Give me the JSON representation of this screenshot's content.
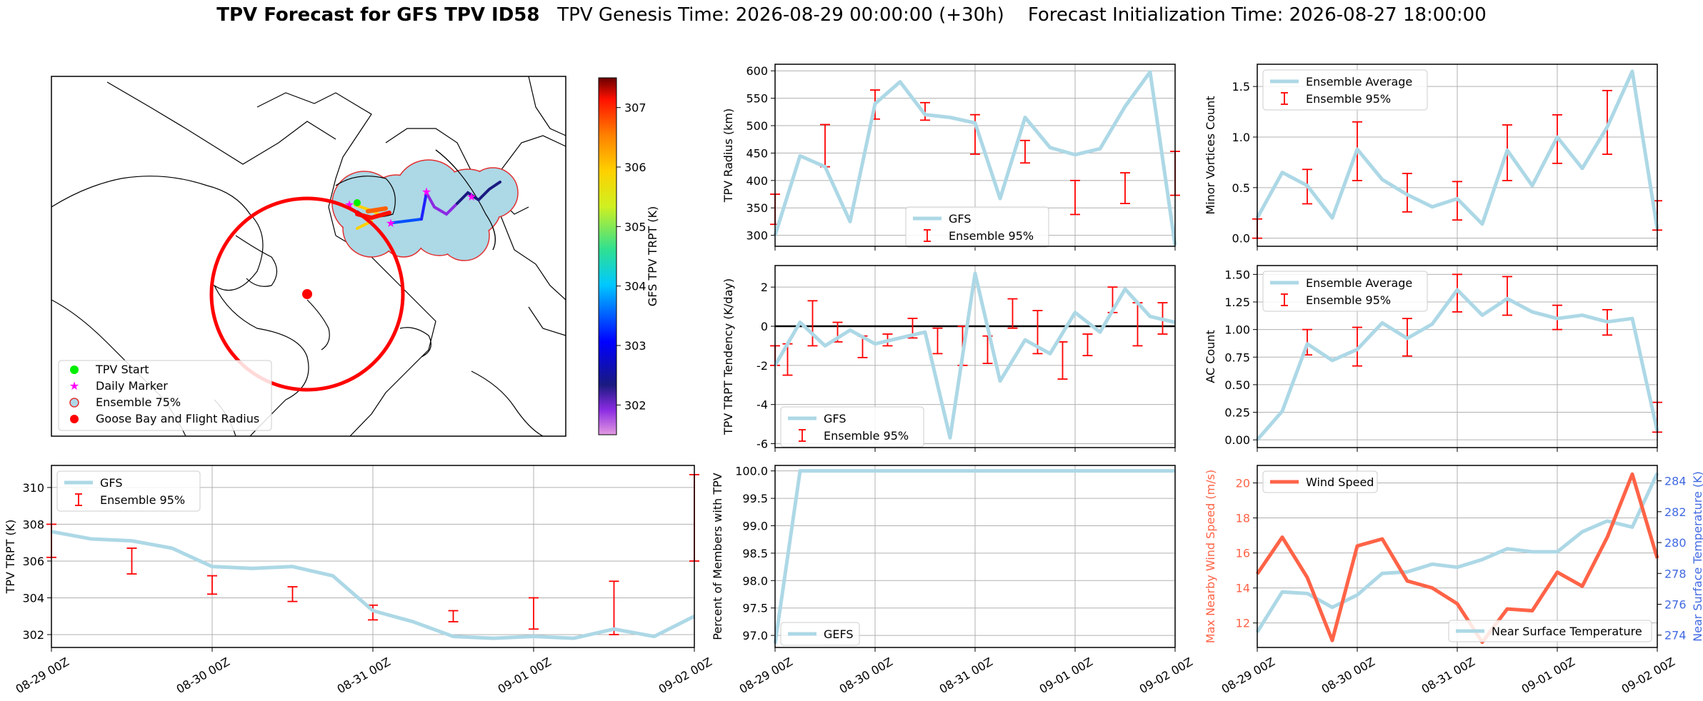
{
  "title": {
    "bold": "TPV Forecast for GFS TPV ID58",
    "genesis": "TPV Genesis Time: 2026-08-29 00:00:00 (+30h)",
    "init": "Forecast Initialization Time: 2026-08-27 18:00:00"
  },
  "colors": {
    "gfs": "#add8e6",
    "errorbar": "#ff0000",
    "wind": "#ff6347",
    "temp_axis": "#4169e1",
    "grid": "#b0b0b0"
  },
  "time_ticks": [
    "08-29 00Z",
    "08-30 00Z",
    "08-31 00Z",
    "09-01 00Z",
    "09-02 00Z"
  ],
  "chart_data": [
    {
      "id": "map",
      "type": "scatter",
      "colorbar": {
        "label": "GFS TPV TRPT (K)",
        "ticks": [
          "302",
          "303",
          "304",
          "305",
          "306",
          "307"
        ],
        "range": [
          301.5,
          307.5
        ]
      },
      "legend": [
        "TPV Start",
        "Daily Marker",
        "Ensemble 75%",
        "Goose Bay and Flight Radius"
      ],
      "legend_loc": "lower-left"
    },
    {
      "id": "radius",
      "type": "line",
      "ylabel": "TPV Radius (km)",
      "yticks": [
        300,
        350,
        400,
        450,
        500,
        550,
        600
      ],
      "ylim": [
        280,
        612
      ],
      "legend": [
        "GFS",
        "Ensemble 95%"
      ],
      "legend_loc": "lower-center",
      "line": [
        [
          0,
          300
        ],
        [
          0.25,
          445
        ],
        [
          0.5,
          425
        ],
        [
          0.75,
          325
        ],
        [
          1,
          540
        ],
        [
          1.25,
          580
        ],
        [
          1.5,
          520
        ],
        [
          1.75,
          515
        ],
        [
          2,
          505
        ],
        [
          2.25,
          367
        ],
        [
          2.5,
          515
        ],
        [
          2.75,
          460
        ],
        [
          3,
          447
        ],
        [
          3.25,
          458
        ],
        [
          3.5,
          535
        ],
        [
          3.75,
          598
        ],
        [
          4,
          282
        ]
      ],
      "err": [
        [
          0,
          320,
          375
        ],
        [
          0.5,
          425,
          502
        ],
        [
          1,
          512,
          565
        ],
        [
          1.5,
          510,
          542
        ],
        [
          2,
          448,
          520
        ],
        [
          2.5,
          432,
          473
        ],
        [
          3,
          338,
          400
        ],
        [
          3.5,
          358,
          414
        ],
        [
          4,
          373,
          453
        ]
      ]
    },
    {
      "id": "minor",
      "type": "line",
      "ylabel": "Minor Vortices Count",
      "yticks": [
        0.0,
        0.5,
        1.0,
        1.5
      ],
      "ylim": [
        -0.08,
        1.72
      ],
      "legend": [
        "Ensemble Average",
        "Ensemble 95%"
      ],
      "legend_loc": "upper-left",
      "line": [
        [
          0,
          0.2
        ],
        [
          0.25,
          0.65
        ],
        [
          0.5,
          0.52
        ],
        [
          0.75,
          0.2
        ],
        [
          1,
          0.88
        ],
        [
          1.25,
          0.58
        ],
        [
          1.5,
          0.43
        ],
        [
          1.75,
          0.31
        ],
        [
          2,
          0.39
        ],
        [
          2.25,
          0.14
        ],
        [
          2.5,
          0.87
        ],
        [
          2.75,
          0.52
        ],
        [
          3,
          1.0
        ],
        [
          3.25,
          0.69
        ],
        [
          3.5,
          1.1
        ],
        [
          3.75,
          1.65
        ],
        [
          4,
          0.09
        ]
      ],
      "err": [
        [
          0,
          0.0,
          0.19
        ],
        [
          0.5,
          0.34,
          0.68
        ],
        [
          1,
          0.57,
          1.15
        ],
        [
          1.5,
          0.26,
          0.64
        ],
        [
          2,
          0.18,
          0.56
        ],
        [
          2.5,
          0.57,
          1.12
        ],
        [
          3,
          0.74,
          1.22
        ],
        [
          3.5,
          0.83,
          1.46
        ],
        [
          4,
          0.08,
          0.37
        ]
      ]
    },
    {
      "id": "tendency",
      "type": "line",
      "ylabel": "TPV TRPT Tendency (K/day)",
      "yticks": [
        -6,
        -4,
        -2,
        0,
        2
      ],
      "ylim": [
        -6.2,
        3.1
      ],
      "legend": [
        "GFS",
        "Ensemble 95%"
      ],
      "legend_loc": "lower-left",
      "zero_line": true,
      "line": [
        [
          0,
          -2.0
        ],
        [
          0.25,
          0.2
        ],
        [
          0.5,
          -1.0
        ],
        [
          0.75,
          -0.2
        ],
        [
          1,
          -0.9
        ],
        [
          1.25,
          -0.6
        ],
        [
          1.5,
          -0.3
        ],
        [
          1.75,
          -5.7
        ],
        [
          2,
          2.7
        ],
        [
          2.25,
          -2.8
        ],
        [
          2.5,
          -0.7
        ],
        [
          2.75,
          -1.4
        ],
        [
          3,
          0.7
        ],
        [
          3.25,
          -0.3
        ],
        [
          3.5,
          1.9
        ],
        [
          3.75,
          0.5
        ],
        [
          4,
          0.2
        ]
      ],
      "err": [
        [
          0,
          -2.0,
          -1.0
        ],
        [
          0.125,
          -2.5,
          -0.9
        ],
        [
          0.375,
          -1.0,
          1.3
        ],
        [
          0.625,
          -0.8,
          0.2
        ],
        [
          0.875,
          -1.6,
          -0.5
        ],
        [
          1.125,
          -1.0,
          -0.4
        ],
        [
          1.375,
          -0.6,
          0.4
        ],
        [
          1.625,
          -1.4,
          -0.1
        ],
        [
          1.875,
          -2.0,
          0.0
        ],
        [
          2.125,
          -1.9,
          -0.5
        ],
        [
          2.375,
          -0.1,
          1.4
        ],
        [
          2.625,
          -1.4,
          0.8
        ],
        [
          2.875,
          -2.7,
          -0.8
        ],
        [
          3.125,
          -1.5,
          -0.4
        ],
        [
          3.375,
          0.7,
          2.0
        ],
        [
          3.625,
          -1.0,
          1.2
        ],
        [
          3.875,
          -0.4,
          1.2
        ]
      ]
    },
    {
      "id": "ac",
      "type": "line",
      "ylabel": "AC Count",
      "yticks": [
        0.0,
        0.25,
        0.5,
        0.75,
        1.0,
        1.25,
        1.5
      ],
      "ylim": [
        -0.07,
        1.58
      ],
      "legend": [
        "Ensemble Average",
        "Ensemble 95%"
      ],
      "legend_loc": "upper-left",
      "line": [
        [
          0,
          0.0
        ],
        [
          0.25,
          0.26
        ],
        [
          0.5,
          0.87
        ],
        [
          0.75,
          0.72
        ],
        [
          1,
          0.82
        ],
        [
          1.25,
          1.06
        ],
        [
          1.5,
          0.92
        ],
        [
          1.75,
          1.05
        ],
        [
          2,
          1.36
        ],
        [
          2.25,
          1.13
        ],
        [
          2.5,
          1.28
        ],
        [
          2.75,
          1.16
        ],
        [
          3,
          1.1
        ],
        [
          3.25,
          1.13
        ],
        [
          3.5,
          1.07
        ],
        [
          3.75,
          1.1
        ],
        [
          4,
          0.08
        ]
      ],
      "err": [
        [
          0.5,
          0.77,
          1.0
        ],
        [
          1,
          0.67,
          1.02
        ],
        [
          1.5,
          0.76,
          1.1
        ],
        [
          2,
          1.16,
          1.5
        ],
        [
          2.5,
          1.13,
          1.48
        ],
        [
          3,
          1.0,
          1.22
        ],
        [
          3.5,
          0.95,
          1.18
        ],
        [
          4,
          0.07,
          0.34
        ]
      ]
    },
    {
      "id": "trpt",
      "type": "line",
      "ylabel": "TPV TRPT (K)",
      "yticks": [
        302,
        304,
        306,
        308,
        310
      ],
      "ylim": [
        301.3,
        311.2
      ],
      "legend": [
        "GFS",
        "Ensemble 95%"
      ],
      "legend_loc": "upper-left",
      "line": [
        [
          0,
          307.6
        ],
        [
          0.25,
          307.2
        ],
        [
          0.5,
          307.1
        ],
        [
          0.75,
          306.7
        ],
        [
          1,
          305.7
        ],
        [
          1.25,
          305.6
        ],
        [
          1.5,
          305.7
        ],
        [
          1.75,
          305.2
        ],
        [
          2,
          303.3
        ],
        [
          2.25,
          302.7
        ],
        [
          2.5,
          301.9
        ],
        [
          2.75,
          301.8
        ],
        [
          3,
          301.9
        ],
        [
          3.25,
          301.8
        ],
        [
          3.5,
          302.3
        ],
        [
          3.75,
          301.9
        ],
        [
          4,
          303.0
        ]
      ],
      "err": [
        [
          0,
          306.2,
          308.0
        ],
        [
          0.5,
          305.3,
          306.7
        ],
        [
          1,
          304.2,
          305.2
        ],
        [
          1.5,
          303.8,
          304.6
        ],
        [
          2,
          302.8,
          303.6
        ],
        [
          2.5,
          302.7,
          303.3
        ],
        [
          3,
          302.3,
          304.0
        ],
        [
          3.5,
          302.0,
          304.9
        ],
        [
          4,
          306.0,
          310.7
        ]
      ]
    },
    {
      "id": "percent",
      "type": "line",
      "ylabel": "Percent of Members with TPV",
      "yticks": [
        97.0,
        97.5,
        98.0,
        98.5,
        99.0,
        99.5,
        100.0
      ],
      "ylim": [
        96.78,
        100.1
      ],
      "legend": [
        "GEFS"
      ],
      "legend_loc": "lower-left",
      "line": [
        [
          0,
          96.85
        ],
        [
          0.25,
          100.0
        ],
        [
          4,
          100.0
        ]
      ],
      "err": []
    },
    {
      "id": "wind",
      "type": "line",
      "ylabel": "Max Nearby Wind Speed (m/s)",
      "ylabel2": "Near Surface Temperature (K)",
      "yticks": [
        12,
        14,
        16,
        18,
        20
      ],
      "yticks2": [
        274,
        276,
        278,
        280,
        282,
        284
      ],
      "ylim": [
        10.6,
        21.0
      ],
      "ylim2": [
        273.2,
        285.0
      ],
      "legend": [
        "Wind Speed"
      ],
      "legend2": [
        "Near Surface Temperature"
      ],
      "line": [
        [
          0,
          14.8
        ],
        [
          0.25,
          16.9
        ],
        [
          0.5,
          14.6
        ],
        [
          0.75,
          11.0
        ],
        [
          1,
          16.4
        ],
        [
          1.25,
          16.8
        ],
        [
          1.5,
          14.4
        ],
        [
          1.75,
          14.0
        ],
        [
          2,
          13.1
        ],
        [
          2.25,
          10.9
        ],
        [
          2.5,
          12.8
        ],
        [
          2.75,
          12.7
        ],
        [
          3,
          14.9
        ],
        [
          3.25,
          14.1
        ],
        [
          3.5,
          16.9
        ],
        [
          3.75,
          20.5
        ],
        [
          4,
          15.7
        ]
      ],
      "line2": [
        [
          0,
          274.2
        ],
        [
          0.25,
          276.8
        ],
        [
          0.5,
          276.7
        ],
        [
          0.75,
          275.8
        ],
        [
          1,
          276.6
        ],
        [
          1.25,
          278.0
        ],
        [
          1.5,
          278.1
        ],
        [
          1.75,
          278.6
        ],
        [
          2,
          278.4
        ],
        [
          2.25,
          278.9
        ],
        [
          2.5,
          279.6
        ],
        [
          2.75,
          279.4
        ],
        [
          3,
          279.4
        ],
        [
          3.25,
          280.7
        ],
        [
          3.5,
          281.4
        ],
        [
          3.75,
          281.0
        ],
        [
          4,
          284.5
        ]
      ]
    }
  ]
}
